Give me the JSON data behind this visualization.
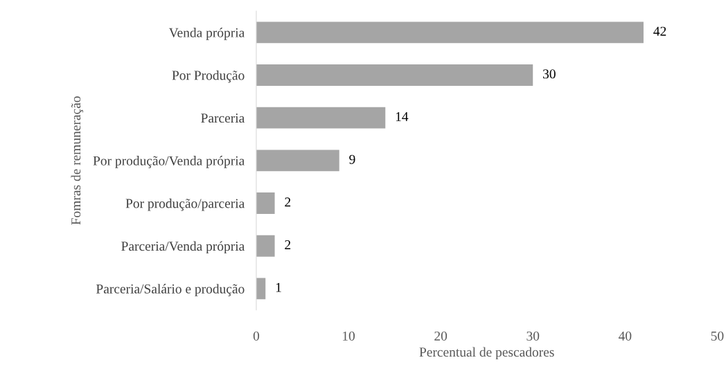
{
  "chart_data": {
    "type": "bar",
    "orientation": "horizontal",
    "categories": [
      "Venda própria",
      "Por Produção",
      "Parceria",
      "Por produção/Venda própria",
      "Por produção/parceria",
      "Parceria/Venda própria",
      "Parceria/Salário e produção"
    ],
    "values": [
      42,
      30,
      14,
      9,
      2,
      2,
      1
    ],
    "color": "#a5a5a5",
    "data_labels": true,
    "xlim": [
      0,
      50
    ],
    "xticks": [
      0,
      10,
      20,
      30,
      40,
      50
    ],
    "grid": false,
    "legend": false,
    "xlabel": "Percentual de pescadores",
    "ylabel": "Fomras de remuneração"
  }
}
